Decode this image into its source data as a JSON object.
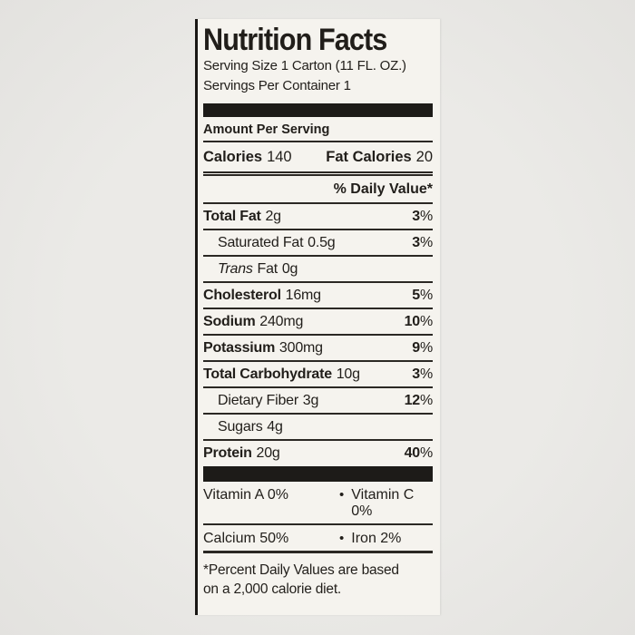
{
  "colors": {
    "page_background": "#e9e8e5",
    "label_background": "#f5f3ee",
    "ink": "#211e1a"
  },
  "nutrition": {
    "title": "Nutrition Facts",
    "serving_size": "Serving Size 1 Carton (11 FL. OZ.)",
    "servings_per_container": "Servings Per Container 1",
    "amount_per_serving": "Amount Per Serving",
    "calories_label": "Calories",
    "calories_value": "140",
    "fat_calories_label": "Fat Calories",
    "fat_calories_value": "20",
    "daily_value_header": "% Daily Value*",
    "percent_sign": "%",
    "rows": [
      {
        "name": "Total Fat",
        "amount": "2g",
        "dv": "3"
      },
      {
        "name": "Saturated Fat",
        "amount": "0.5g",
        "dv": "3"
      },
      {
        "name_italic": "Trans",
        "name_rest": "Fat",
        "amount": "0g",
        "dv": ""
      },
      {
        "name": "Cholesterol",
        "amount": "16mg",
        "dv": "5"
      },
      {
        "name": "Sodium",
        "amount": "240mg",
        "dv": "10"
      },
      {
        "name": "Potassium",
        "amount": "300mg",
        "dv": "9"
      },
      {
        "name": "Total Carbohydrate",
        "amount": "10g",
        "dv": "3"
      },
      {
        "name": "Dietary Fiber",
        "amount": "3g",
        "dv": "12"
      },
      {
        "name": "Sugars",
        "amount": "4g",
        "dv": ""
      },
      {
        "name": "Protein",
        "amount": "20g",
        "dv": "40"
      }
    ],
    "micronutrients": [
      {
        "left": "Vitamin A 0%",
        "bullet": "•",
        "right": "Vitamin C 0%"
      },
      {
        "left": "Calcium 50%",
        "bullet": "•",
        "right": "Iron 2%"
      }
    ],
    "footnote_line1": "*Percent Daily Values are based",
    "footnote_line2": "on a 2,000 calorie diet."
  }
}
